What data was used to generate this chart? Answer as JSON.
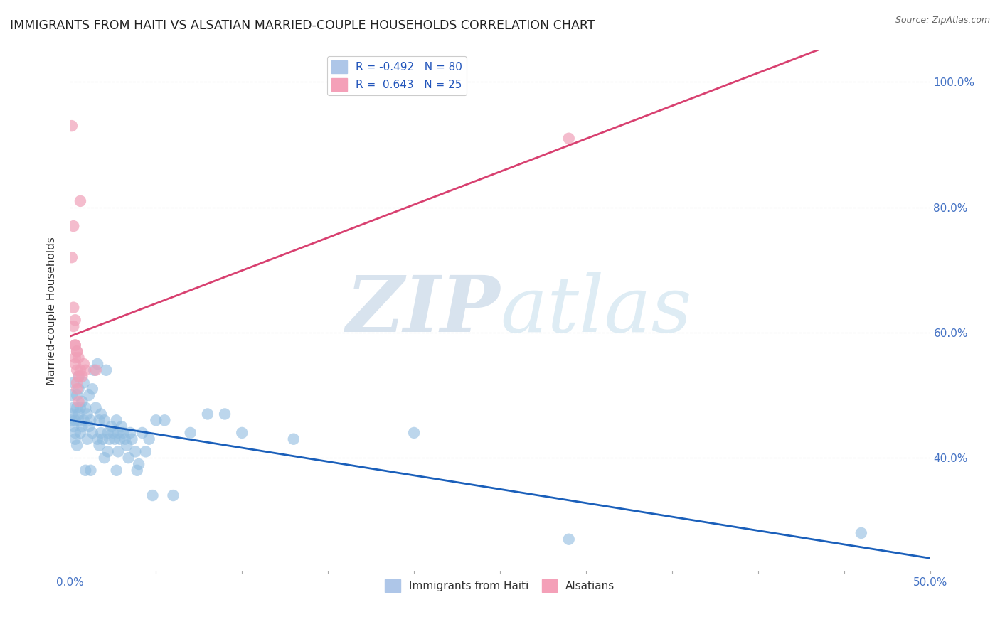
{
  "title": "IMMIGRANTS FROM HAITI VS ALSATIAN MARRIED-COUPLE HOUSEHOLDS CORRELATION CHART",
  "source": "Source: ZipAtlas.com",
  "ylabel": "Married-couple Households",
  "haiti_color": "#90bce0",
  "alsatian_color": "#f0a0b8",
  "haiti_line_color": "#1a5fba",
  "alsatian_line_color": "#d84070",
  "background_color": "#ffffff",
  "grid_color": "#d8d8d8",
  "watermark_zip_color": "#c5d8ea",
  "watermark_atlas_color": "#c8dff0",
  "title_color": "#222222",
  "source_color": "#666666",
  "axis_label_color": "#4472c4",
  "xlim": [
    0.0,
    0.5
  ],
  "ylim": [
    0.22,
    1.05
  ],
  "haiti_scatter": [
    [
      0.001,
      0.47
    ],
    [
      0.001,
      0.5
    ],
    [
      0.001,
      0.46
    ],
    [
      0.002,
      0.48
    ],
    [
      0.002,
      0.45
    ],
    [
      0.002,
      0.52
    ],
    [
      0.003,
      0.44
    ],
    [
      0.003,
      0.46
    ],
    [
      0.003,
      0.43
    ],
    [
      0.004,
      0.48
    ],
    [
      0.004,
      0.5
    ],
    [
      0.004,
      0.42
    ],
    [
      0.005,
      0.51
    ],
    [
      0.005,
      0.47
    ],
    [
      0.005,
      0.46
    ],
    [
      0.005,
      0.53
    ],
    [
      0.006,
      0.48
    ],
    [
      0.006,
      0.44
    ],
    [
      0.007,
      0.45
    ],
    [
      0.007,
      0.49
    ],
    [
      0.008,
      0.46
    ],
    [
      0.008,
      0.52
    ],
    [
      0.009,
      0.48
    ],
    [
      0.009,
      0.38
    ],
    [
      0.01,
      0.47
    ],
    [
      0.01,
      0.43
    ],
    [
      0.011,
      0.5
    ],
    [
      0.011,
      0.45
    ],
    [
      0.012,
      0.38
    ],
    [
      0.012,
      0.46
    ],
    [
      0.013,
      0.44
    ],
    [
      0.013,
      0.51
    ],
    [
      0.014,
      0.54
    ],
    [
      0.015,
      0.48
    ],
    [
      0.016,
      0.43
    ],
    [
      0.016,
      0.55
    ],
    [
      0.017,
      0.46
    ],
    [
      0.017,
      0.42
    ],
    [
      0.018,
      0.44
    ],
    [
      0.018,
      0.47
    ],
    [
      0.019,
      0.43
    ],
    [
      0.02,
      0.4
    ],
    [
      0.02,
      0.46
    ],
    [
      0.021,
      0.54
    ],
    [
      0.022,
      0.44
    ],
    [
      0.022,
      0.41
    ],
    [
      0.023,
      0.43
    ],
    [
      0.024,
      0.45
    ],
    [
      0.025,
      0.44
    ],
    [
      0.026,
      0.43
    ],
    [
      0.027,
      0.46
    ],
    [
      0.027,
      0.38
    ],
    [
      0.028,
      0.44
    ],
    [
      0.028,
      0.41
    ],
    [
      0.029,
      0.43
    ],
    [
      0.03,
      0.45
    ],
    [
      0.031,
      0.44
    ],
    [
      0.032,
      0.43
    ],
    [
      0.033,
      0.42
    ],
    [
      0.034,
      0.4
    ],
    [
      0.035,
      0.44
    ],
    [
      0.036,
      0.43
    ],
    [
      0.038,
      0.41
    ],
    [
      0.039,
      0.38
    ],
    [
      0.04,
      0.39
    ],
    [
      0.042,
      0.44
    ],
    [
      0.044,
      0.41
    ],
    [
      0.046,
      0.43
    ],
    [
      0.048,
      0.34
    ],
    [
      0.05,
      0.46
    ],
    [
      0.055,
      0.46
    ],
    [
      0.06,
      0.34
    ],
    [
      0.07,
      0.44
    ],
    [
      0.08,
      0.47
    ],
    [
      0.09,
      0.47
    ],
    [
      0.1,
      0.44
    ],
    [
      0.13,
      0.43
    ],
    [
      0.2,
      0.44
    ],
    [
      0.29,
      0.27
    ],
    [
      0.46,
      0.28
    ]
  ],
  "alsatian_scatter": [
    [
      0.001,
      0.93
    ],
    [
      0.001,
      0.72
    ],
    [
      0.002,
      0.64
    ],
    [
      0.002,
      0.77
    ],
    [
      0.002,
      0.61
    ],
    [
      0.003,
      0.55
    ],
    [
      0.003,
      0.62
    ],
    [
      0.003,
      0.58
    ],
    [
      0.003,
      0.56
    ],
    [
      0.003,
      0.58
    ],
    [
      0.004,
      0.57
    ],
    [
      0.004,
      0.54
    ],
    [
      0.004,
      0.57
    ],
    [
      0.004,
      0.51
    ],
    [
      0.004,
      0.52
    ],
    [
      0.005,
      0.56
    ],
    [
      0.005,
      0.49
    ],
    [
      0.005,
      0.53
    ],
    [
      0.006,
      0.81
    ],
    [
      0.006,
      0.54
    ],
    [
      0.007,
      0.53
    ],
    [
      0.008,
      0.55
    ],
    [
      0.009,
      0.54
    ],
    [
      0.29,
      0.91
    ],
    [
      0.015,
      0.54
    ]
  ]
}
